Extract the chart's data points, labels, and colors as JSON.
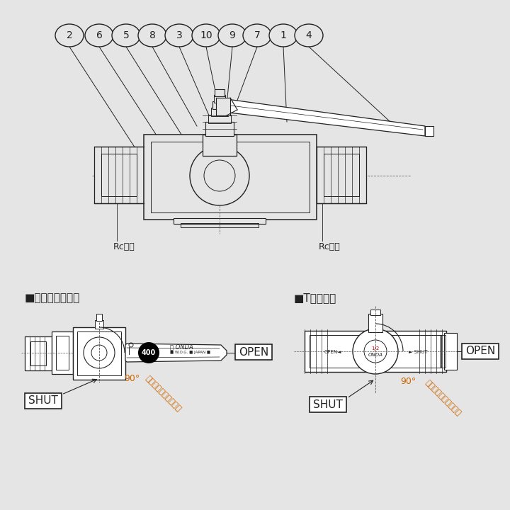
{
  "bg_color": "#e5e5e5",
  "line_color": "#222222",
  "title_label1": "■レバーハンドル",
  "title_label2": "■Tハンドル",
  "open_label": "OPEN",
  "shut_label": "SHUT",
  "angle_label": "90°",
  "angle_sublabel": "（ハンドル開閉角度）",
  "rc_label": "Rcねじ",
  "part_numbers": [
    "2",
    "6",
    "5",
    "8",
    "3",
    "10",
    "9",
    "7",
    "1",
    "4"
  ],
  "font_color": "#222222",
  "orange_color": "#cc6600",
  "onda_text": "ONDA",
  "wog_text": "■ W.O.G. ■ JAPAN ■",
  "num400": "400"
}
